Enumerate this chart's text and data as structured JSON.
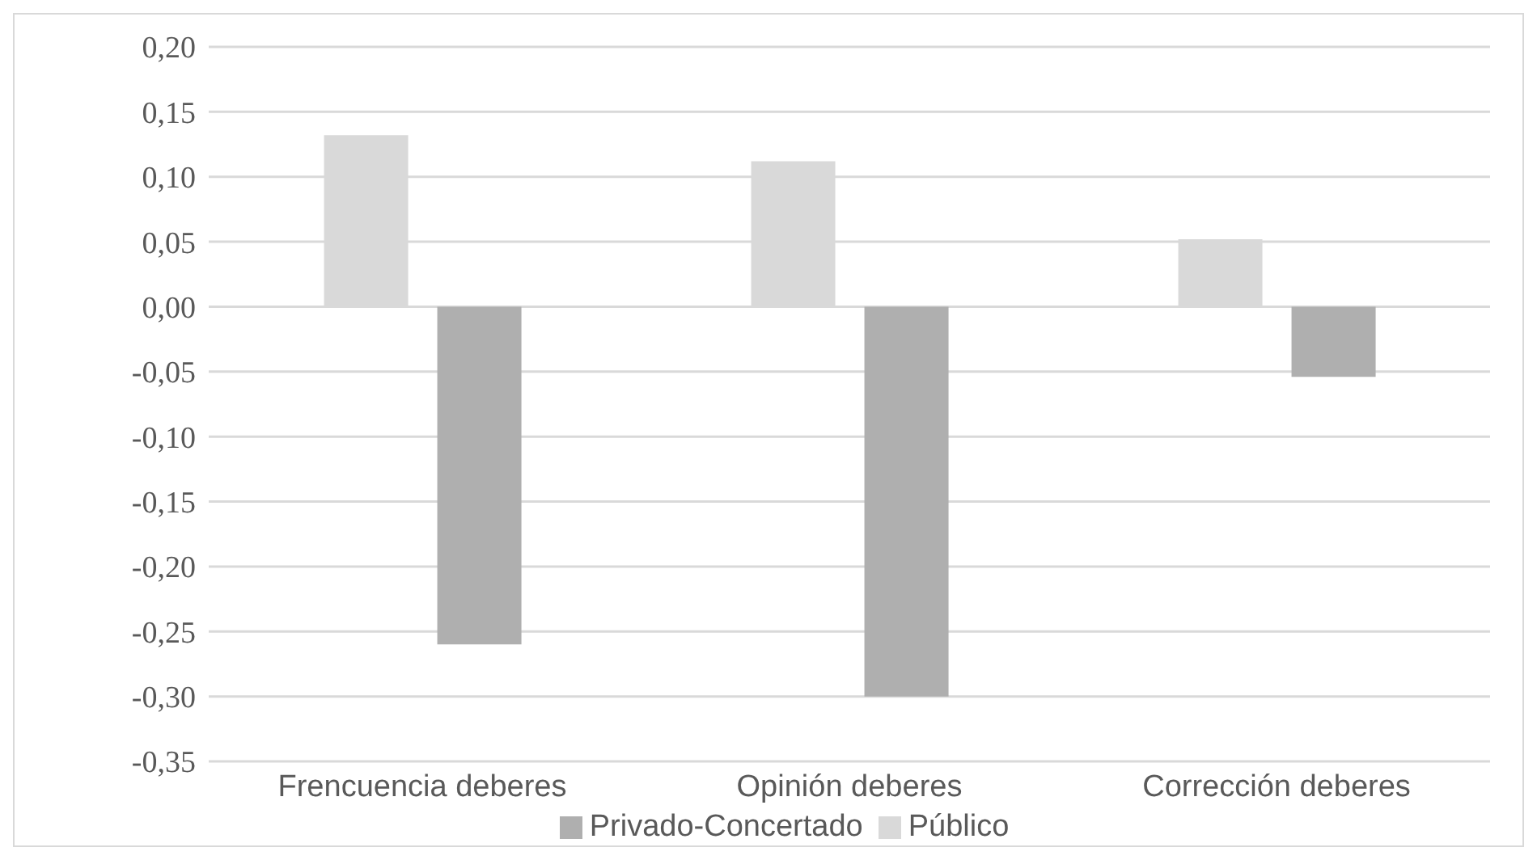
{
  "chart_data": {
    "type": "bar",
    "categories": [
      "Frencuencia deberes",
      "Opinión deberes",
      "Corrección deberes"
    ],
    "series": [
      {
        "name": "Público",
        "color": "#d9d9d9",
        "values": [
          0.132,
          0.112,
          0.052
        ]
      },
      {
        "name": "Privado-Concertado",
        "color": "#afafaf",
        "values": [
          -0.26,
          -0.3,
          -0.054
        ]
      }
    ],
    "ylim": [
      -0.35,
      0.2
    ],
    "yticks": [
      {
        "value": -0.35,
        "label": "-0,35"
      },
      {
        "value": -0.3,
        "label": "-0,30"
      },
      {
        "value": -0.25,
        "label": "-0,25"
      },
      {
        "value": -0.2,
        "label": "-0,20"
      },
      {
        "value": -0.15,
        "label": "-0,15"
      },
      {
        "value": -0.1,
        "label": "-0,10"
      },
      {
        "value": -0.05,
        "label": "-0,05"
      },
      {
        "value": 0,
        "label": "0,00"
      },
      {
        "value": 0.05,
        "label": "0,05"
      },
      {
        "value": 0.1,
        "label": "0,10"
      },
      {
        "value": 0.15,
        "label": "0,15"
      },
      {
        "value": 0.2,
        "label": "0,20"
      }
    ],
    "grid": "y",
    "legend": "bottom"
  }
}
